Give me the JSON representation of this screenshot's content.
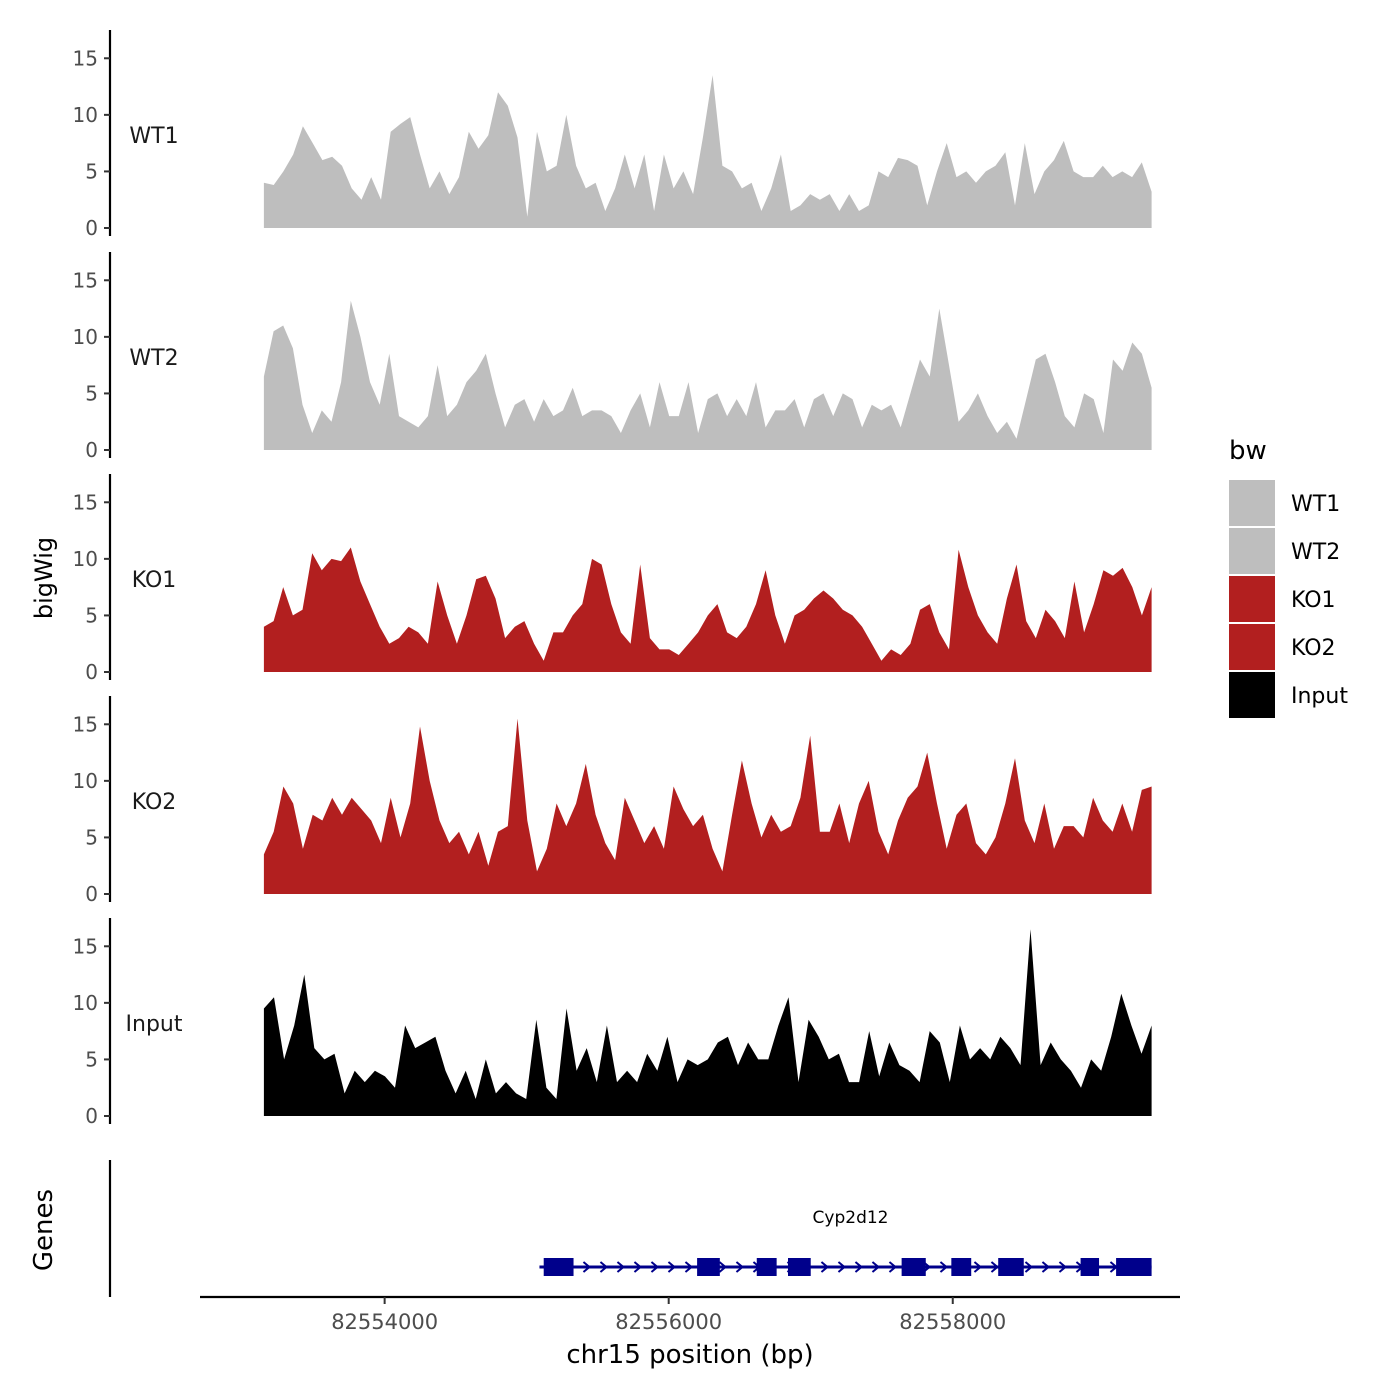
{
  "chart_data": {
    "type": "area",
    "ylabel": "bigWig",
    "genes_label": "Genes",
    "xlabel": "chr15 position (bp)",
    "xlim": [
      82552700,
      82559600
    ],
    "x_ticks": [
      82554000,
      82556000,
      82558000
    ],
    "ylim": [
      0,
      17.5
    ],
    "y_ticks": [
      0,
      5,
      10,
      15
    ],
    "legend": {
      "title": "bw",
      "position": "right",
      "entries": [
        {
          "label": "WT1",
          "color": "#bebebe"
        },
        {
          "label": "WT2",
          "color": "#bebebe"
        },
        {
          "label": "KO1",
          "color": "#b21f1f"
        },
        {
          "label": "KO2",
          "color": "#b21f1f"
        },
        {
          "label": "Input",
          "color": "#000000"
        }
      ]
    },
    "x_start": 82553150,
    "x_end": 82559400,
    "series": [
      {
        "name": "WT1",
        "color": "#bebebe",
        "values": [
          4,
          3.8,
          5,
          6.5,
          9,
          7.5,
          6,
          6.3,
          5.5,
          3.5,
          2.5,
          4.5,
          2.5,
          8.5,
          9.2,
          9.8,
          6.5,
          3.5,
          5,
          3,
          4.5,
          8.5,
          7,
          8.2,
          12,
          10.8,
          8,
          1,
          8.5,
          5,
          5.5,
          10,
          5.5,
          3.5,
          4,
          1.5,
          3.5,
          6.5,
          3.5,
          6.5,
          1.5,
          6.5,
          3.5,
          5,
          3,
          8,
          13.5,
          5.5,
          5,
          3.5,
          4,
          1.5,
          3.5,
          6.5,
          1.5,
          2,
          3,
          2.5,
          3,
          1.5,
          3,
          1.5,
          2,
          5,
          4.5,
          6.2,
          6,
          5.5,
          2,
          5,
          7.5,
          4.5,
          5,
          4,
          5,
          5.5,
          6.7,
          2,
          7.5,
          3,
          5,
          6,
          7.7,
          5,
          4.5,
          4.5,
          5.5,
          4.5,
          5,
          4.5,
          5.8,
          3.2
        ]
      },
      {
        "name": "WT2",
        "color": "#bebebe",
        "values": [
          6.5,
          10.5,
          11,
          9,
          4,
          1.5,
          3.5,
          2.5,
          6,
          13.2,
          10,
          6,
          4,
          8.5,
          3,
          2.5,
          2,
          3,
          7.5,
          3,
          4,
          6,
          7,
          8.5,
          5,
          2,
          4,
          4.5,
          2.5,
          4.5,
          3,
          3.5,
          5.5,
          3,
          3.5,
          3.5,
          3,
          1.5,
          3.5,
          5,
          2,
          6,
          3,
          3,
          6,
          1.5,
          4.5,
          5,
          3,
          4.5,
          3,
          6,
          2,
          3.5,
          3.5,
          4.5,
          2,
          4.5,
          5,
          3,
          5,
          4.5,
          2,
          4,
          3.5,
          4,
          2,
          5,
          8,
          6.5,
          12.5,
          7.5,
          2.5,
          3.5,
          5,
          3,
          1.5,
          2.5,
          1,
          4.5,
          8,
          8.5,
          6,
          3,
          2,
          5,
          4.5,
          1.5,
          8,
          7,
          9.5,
          8.5,
          5.5
        ]
      },
      {
        "name": "KO1",
        "color": "#b21f1f",
        "values": [
          4,
          4.5,
          7.5,
          5,
          5.5,
          10.5,
          9,
          10,
          9.8,
          11,
          8,
          6,
          4,
          2.5,
          3,
          4,
          3.5,
          2.5,
          8,
          5,
          2.5,
          5,
          8.2,
          8.5,
          6.5,
          3,
          4,
          4.5,
          2.5,
          1,
          3.5,
          3.5,
          5,
          6,
          10,
          9.5,
          6,
          3.5,
          2.5,
          9.5,
          3,
          2,
          2,
          1.5,
          2.5,
          3.5,
          5,
          6,
          3.5,
          3,
          4,
          6,
          9,
          5,
          2.5,
          5,
          5.5,
          6.5,
          7.2,
          6.5,
          5.5,
          5,
          4,
          2.5,
          1,
          2,
          1.5,
          2.5,
          5.5,
          6,
          3.5,
          2,
          10.8,
          7.5,
          5,
          3.5,
          2.5,
          6.5,
          9.5,
          4.5,
          3,
          5.5,
          4.5,
          3,
          8,
          3.5,
          6,
          9,
          8.5,
          9.2,
          7.5,
          5,
          7.5
        ]
      },
      {
        "name": "KO2",
        "color": "#b21f1f",
        "values": [
          3.5,
          5.5,
          9.5,
          8,
          4,
          7,
          6.5,
          8.5,
          7,
          8.5,
          7.5,
          6.5,
          4.5,
          8.5,
          5,
          8,
          14.8,
          10,
          6.5,
          4.5,
          5.5,
          3.5,
          5.5,
          2.5,
          5.5,
          6,
          15.5,
          6.5,
          2,
          4,
          8,
          6,
          8,
          11.5,
          7,
          4.5,
          3,
          8.5,
          6.5,
          4.5,
          6,
          4,
          9.5,
          7.5,
          6,
          7,
          4,
          2,
          7,
          11.8,
          8,
          5,
          7,
          5.5,
          6,
          8.5,
          14,
          5.5,
          5.5,
          8,
          4.5,
          8,
          10,
          5.5,
          3.5,
          6.5,
          8.5,
          9.5,
          12.5,
          8,
          4,
          7,
          8,
          4.5,
          3.5,
          5,
          8,
          12,
          6.5,
          4.5,
          8,
          4,
          6,
          6,
          5,
          8.5,
          6.5,
          5.5,
          8,
          5.5,
          9.2,
          9.5
        ]
      },
      {
        "name": "Input",
        "color": "#000000",
        "values": [
          9.5,
          10.5,
          5,
          8,
          12.5,
          6,
          5,
          5.5,
          2,
          4,
          3,
          4,
          3.5,
          2.5,
          8,
          6,
          6.5,
          7,
          4,
          2,
          4,
          1.5,
          5,
          2,
          3,
          2,
          1.5,
          8.5,
          2.5,
          1.5,
          9.5,
          4,
          6,
          3,
          8,
          3,
          4,
          3,
          5.5,
          4,
          7,
          3,
          5,
          4.5,
          5,
          6.5,
          7,
          4.5,
          6.5,
          5,
          5,
          8,
          10.5,
          3,
          8.5,
          7,
          5,
          5.5,
          3,
          3,
          7.5,
          3.5,
          6.5,
          4.5,
          4,
          3,
          7.5,
          6.5,
          3,
          8,
          5,
          6,
          5,
          7,
          6,
          4.5,
          16.5,
          4.5,
          6.5,
          5,
          4,
          2.5,
          5,
          4,
          7,
          10.8,
          8,
          5.5,
          8
        ]
      }
    ],
    "genes": [
      {
        "name": "Cyp2d12",
        "strand": "+",
        "start": 82555090,
        "end": 82559400,
        "exons": [
          [
            82555120,
            82555330
          ],
          [
            82556200,
            82556360
          ],
          [
            82556620,
            82556760
          ],
          [
            82556840,
            82557000
          ],
          [
            82557640,
            82557810
          ],
          [
            82557990,
            82558130
          ],
          [
            82558320,
            82558500
          ],
          [
            82558900,
            82559030
          ],
          [
            82559150,
            82559400
          ]
        ]
      }
    ]
  }
}
